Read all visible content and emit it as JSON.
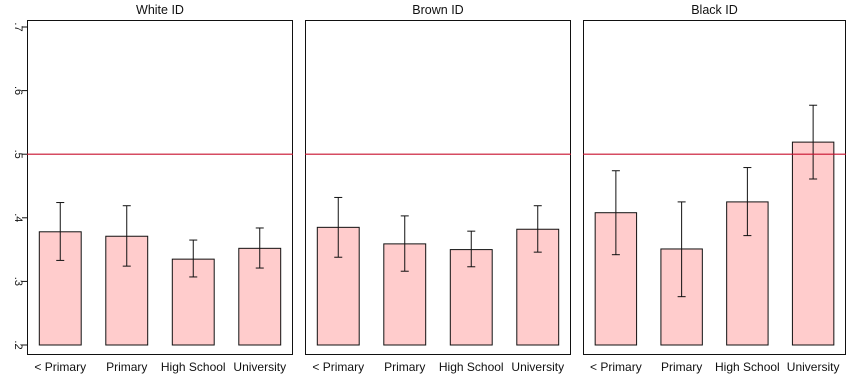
{
  "chart_data": {
    "type": "bar",
    "categories": [
      "< Primary",
      "Primary",
      "High School",
      "University"
    ],
    "ylim": [
      0.2,
      0.7
    ],
    "yticks": [
      ".2",
      ".3",
      ".4",
      ".5",
      ".6",
      ".7"
    ],
    "reference_line": 0.5,
    "xlabel": "",
    "ylabel": "",
    "grid": false,
    "colors": {
      "bar_fill": "#ffcccc",
      "bar_stroke": "#111111",
      "reference_line": "#c8102e",
      "panel_border": "#111111"
    },
    "panels": [
      {
        "title": "White ID",
        "values": [
          0.378,
          0.371,
          0.335,
          0.352
        ],
        "ci_low": [
          0.333,
          0.324,
          0.307,
          0.321
        ],
        "ci_high": [
          0.424,
          0.419,
          0.365,
          0.384
        ]
      },
      {
        "title": "Brown ID",
        "values": [
          0.385,
          0.359,
          0.35,
          0.382
        ],
        "ci_low": [
          0.338,
          0.316,
          0.323,
          0.346
        ],
        "ci_high": [
          0.432,
          0.403,
          0.379,
          0.419
        ]
      },
      {
        "title": "Black ID",
        "values": [
          0.408,
          0.351,
          0.425,
          0.519
        ],
        "ci_low": [
          0.342,
          0.276,
          0.372,
          0.461
        ],
        "ci_high": [
          0.474,
          0.425,
          0.479,
          0.577
        ]
      }
    ]
  }
}
